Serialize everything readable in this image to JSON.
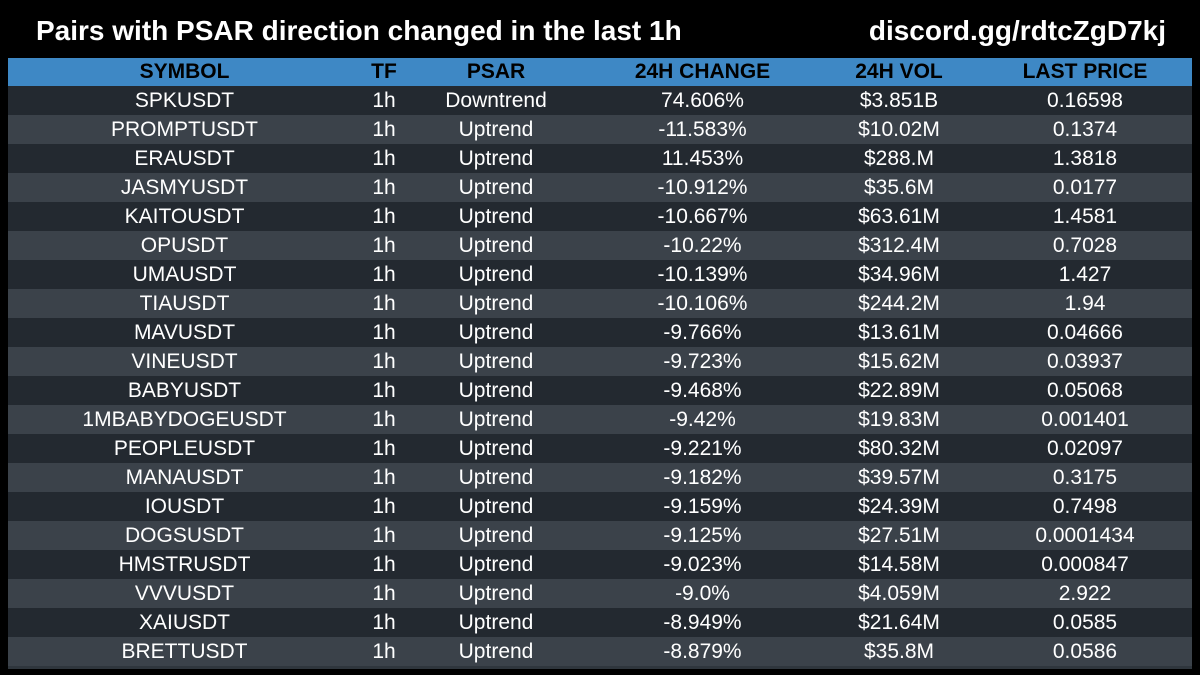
{
  "header": {
    "title": "Pairs with PSAR direction changed in the last 1h",
    "link": "discord.gg/rdtcZgD7kj"
  },
  "colors": {
    "background": "#000000",
    "header_row": "#3e88c5",
    "row_dark": "#232930",
    "row_light": "#3b424a",
    "text": "#ffffff"
  },
  "table": {
    "columns": [
      "SYMBOL",
      "TF",
      "PSAR",
      "24H CHANGE",
      "24H VOL",
      "LAST PRICE"
    ],
    "rows": [
      [
        "SPKUSDT",
        "1h",
        "Downtrend",
        "74.606%",
        "$3.851B",
        "0.16598"
      ],
      [
        "PROMPTUSDT",
        "1h",
        "Uptrend",
        "-11.583%",
        "$10.02M",
        "0.1374"
      ],
      [
        "ERAUSDT",
        "1h",
        "Uptrend",
        "11.453%",
        "$288.M",
        "1.3818"
      ],
      [
        "JASMYUSDT",
        "1h",
        "Uptrend",
        "-10.912%",
        "$35.6M",
        "0.0177"
      ],
      [
        "KAITOUSDT",
        "1h",
        "Uptrend",
        "-10.667%",
        "$63.61M",
        "1.4581"
      ],
      [
        "OPUSDT",
        "1h",
        "Uptrend",
        "-10.22%",
        "$312.4M",
        "0.7028"
      ],
      [
        "UMAUSDT",
        "1h",
        "Uptrend",
        "-10.139%",
        "$34.96M",
        "1.427"
      ],
      [
        "TIAUSDT",
        "1h",
        "Uptrend",
        "-10.106%",
        "$244.2M",
        "1.94"
      ],
      [
        "MAVUSDT",
        "1h",
        "Uptrend",
        "-9.766%",
        "$13.61M",
        "0.04666"
      ],
      [
        "VINEUSDT",
        "1h",
        "Uptrend",
        "-9.723%",
        "$15.62M",
        "0.03937"
      ],
      [
        "BABYUSDT",
        "1h",
        "Uptrend",
        "-9.468%",
        "$22.89M",
        "0.05068"
      ],
      [
        "1MBABYDOGEUSDT",
        "1h",
        "Uptrend",
        "-9.42%",
        "$19.83M",
        "0.001401"
      ],
      [
        "PEOPLEUSDT",
        "1h",
        "Uptrend",
        "-9.221%",
        "$80.32M",
        "0.02097"
      ],
      [
        "MANAUSDT",
        "1h",
        "Uptrend",
        "-9.182%",
        "$39.57M",
        "0.3175"
      ],
      [
        "IOUSDT",
        "1h",
        "Uptrend",
        "-9.159%",
        "$24.39M",
        "0.7498"
      ],
      [
        "DOGSUSDT",
        "1h",
        "Uptrend",
        "-9.125%",
        "$27.51M",
        "0.0001434"
      ],
      [
        "HMSTRUSDT",
        "1h",
        "Uptrend",
        "-9.023%",
        "$14.58M",
        "0.000847"
      ],
      [
        "VVVUSDT",
        "1h",
        "Uptrend",
        "-9.0%",
        "$4.059M",
        "2.922"
      ],
      [
        "XAIUSDT",
        "1h",
        "Uptrend",
        "-8.949%",
        "$21.64M",
        "0.0585"
      ],
      [
        "BRETTUSDT",
        "1h",
        "Uptrend",
        "-8.879%",
        "$35.8M",
        "0.0586"
      ]
    ]
  }
}
